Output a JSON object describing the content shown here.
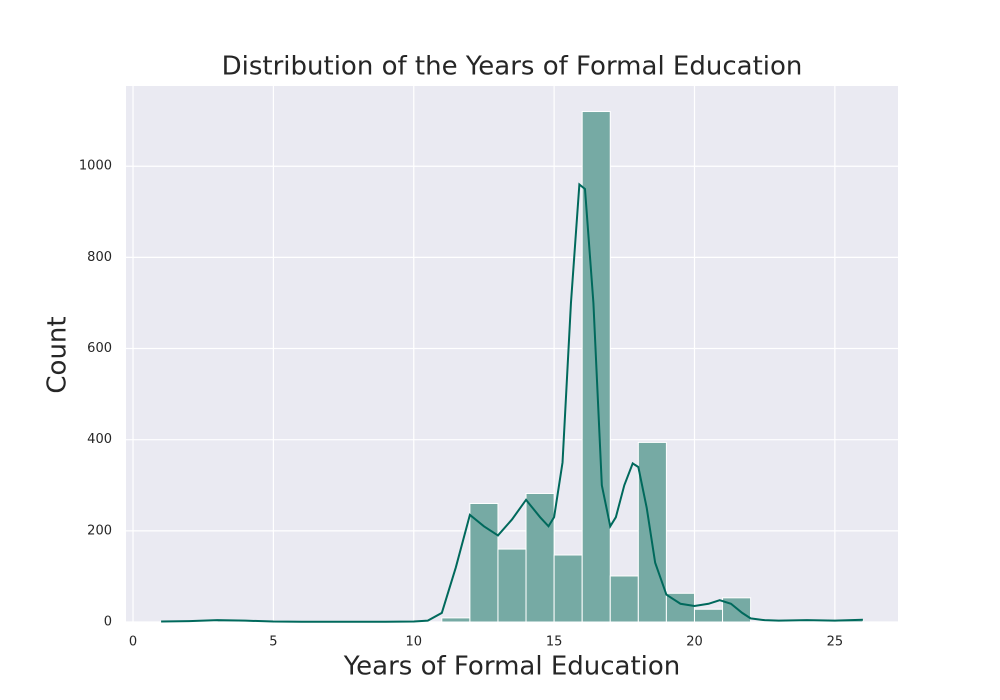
{
  "chart_data": {
    "type": "histogram",
    "title": "Distribution of the Years of Formal Education",
    "x_label": "Years of Formal Education",
    "y_label": "Count",
    "bins": [
      1,
      2,
      3,
      4,
      5,
      6,
      7,
      8,
      9,
      10,
      11,
      12,
      13,
      14,
      15,
      16,
      17,
      18,
      19,
      20,
      21,
      22,
      23,
      24,
      25,
      26
    ],
    "values": [
      1,
      1,
      3,
      2,
      1,
      0,
      0,
      0,
      1,
      0,
      9,
      260,
      160,
      282,
      147,
      1120,
      101,
      394,
      63,
      28,
      53,
      0,
      2,
      1,
      4
    ],
    "color": "#76aaa4",
    "kde": {
      "color": "#00695c",
      "x": [
        1,
        2,
        3,
        4,
        5,
        6,
        7,
        8,
        9,
        10,
        10.5,
        11,
        11.5,
        12,
        12.5,
        13,
        13.5,
        14,
        14.5,
        14.8,
        15,
        15.3,
        15.6,
        15.9,
        16.1,
        16.4,
        16.7,
        17,
        17.2,
        17.5,
        17.8,
        18,
        18.3,
        18.6,
        19,
        19.5,
        20,
        20.5,
        20.9,
        21.3,
        21.7,
        22,
        22.5,
        23,
        24,
        25,
        26
      ],
      "values": [
        1,
        2,
        4,
        3,
        1,
        0.5,
        0.5,
        0.5,
        0.5,
        1,
        3,
        20,
        120,
        235,
        210,
        190,
        225,
        268,
        230,
        210,
        230,
        350,
        700,
        960,
        950,
        700,
        300,
        210,
        230,
        300,
        348,
        340,
        250,
        130,
        60,
        40,
        35,
        40,
        48,
        40,
        20,
        8,
        4,
        3,
        4,
        3,
        5
      ]
    },
    "xlim": [
      -0.25,
      27.25
    ],
    "xticks": [
      0,
      5,
      10,
      15,
      20,
      25
    ],
    "ylim": [
      0,
      1176
    ],
    "yticks": [
      0,
      200,
      400,
      600,
      800,
      1000
    ],
    "grid": true
  }
}
